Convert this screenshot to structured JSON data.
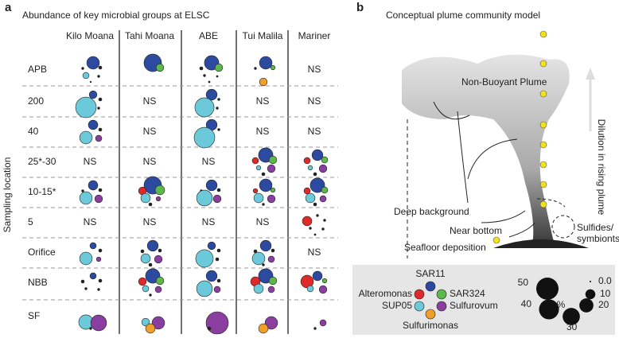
{
  "panel_a": {
    "label": "a",
    "title": "Abundance of key microbial groups at ELSC",
    "y_label": "Sampling location",
    "columns": [
      "Kilo Moana",
      "Tahi Moana",
      "ABE",
      "Tui Malila",
      "Mariner"
    ],
    "rows": [
      "APB",
      "200",
      "40",
      "25*-30",
      "10-15*",
      "5",
      "Orifice",
      "NBB",
      "SF"
    ],
    "cells": [
      [
        [
          16,
          1,
          0.5,
          4,
          0.5,
          0.2
        ],
        [
          31,
          6,
          0,
          0,
          0,
          0
        ],
        [
          21,
          6,
          1,
          0.5,
          0.3,
          0.3
        ],
        [
          16,
          2,
          0.5,
          0,
          0,
          6
        ],
        "NS"
      ],
      [
        [
          6,
          1,
          0,
          43,
          0.5,
          0
        ],
        "NS",
        [
          12,
          0.5,
          0,
          37,
          0.5,
          0
        ],
        "NS",
        "NS"
      ],
      [
        [
          9,
          1,
          0,
          16,
          4,
          0
        ],
        "NS",
        [
          12,
          0.5,
          0,
          43,
          0,
          0
        ],
        "NS",
        "NS"
      ],
      [
        "NS",
        "NS",
        "NS",
        [
          21,
          6,
          4,
          2,
          6,
          1
        ],
        [
          12,
          4,
          4,
          2,
          6,
          1
        ]
      ],
      [
        [
          9,
          1,
          0.5,
          16,
          6,
          0
        ],
        [
          31,
          9,
          6,
          9,
          2,
          1
        ],
        [
          12,
          1,
          0.5,
          25,
          6,
          0
        ],
        [
          16,
          2,
          2,
          9,
          6,
          0.5
        ],
        [
          21,
          4,
          4,
          9,
          4,
          1
        ]
      ],
      [
        "NS",
        "NS",
        "NS",
        "NS",
        [
          0.5,
          0.5,
          9,
          0.5,
          0.5,
          0.3
        ]
      ],
      [
        [
          4,
          1,
          0,
          16,
          2,
          0
        ],
        [
          12,
          1,
          1,
          9,
          6,
          1
        ],
        [
          6,
          1,
          0,
          31,
          1,
          0
        ],
        [
          12,
          1,
          1,
          16,
          4,
          0.5
        ],
        "NS"
      ],
      [
        [
          4,
          1,
          1,
          0.5,
          0.5,
          0
        ],
        [
          21,
          6,
          6,
          4,
          4,
          0.5
        ],
        [
          12,
          1,
          0,
          25,
          4,
          0
        ],
        [
          21,
          6,
          9,
          9,
          4,
          0
        ],
        [
          9,
          2,
          16,
          4,
          6,
          0
        ]
      ],
      [
        [
          0,
          0,
          0,
          21,
          25,
          0.5
        ],
        [
          0,
          0,
          0,
          6,
          16,
          9
        ],
        [
          0,
          0,
          0,
          0,
          50,
          1
        ],
        [
          0,
          0,
          0,
          0,
          16,
          9
        ],
        [
          0,
          0,
          0,
          0,
          4,
          0.5
        ]
      ]
    ]
  },
  "panel_b": {
    "label": "b",
    "title": "Conceptual plume community model",
    "annotations": [
      "Non-Buoyant Plume",
      "Dilution in rising plume",
      "Deep background",
      "Near bottom",
      "Sulfides/",
      "symbionts",
      "Seafloor deposition"
    ],
    "groups": [
      {
        "name": "SAR11",
        "color": "#2b4aa0"
      },
      {
        "name": "SAR324",
        "color": "#5cb84a"
      },
      {
        "name": "Alteromonas",
        "color": "#e02a2a"
      },
      {
        "name": "SUP05",
        "color": "#6cc9d9"
      },
      {
        "name": "Sulfurovum",
        "color": "#8a3fa0"
      },
      {
        "name": "Sulfurimonas",
        "color": "#f0a02a"
      }
    ],
    "size_unit": "%",
    "size_ticks": [
      {
        "value": 0,
        "label": "0.0"
      },
      10,
      20,
      30,
      40,
      50
    ]
  }
}
